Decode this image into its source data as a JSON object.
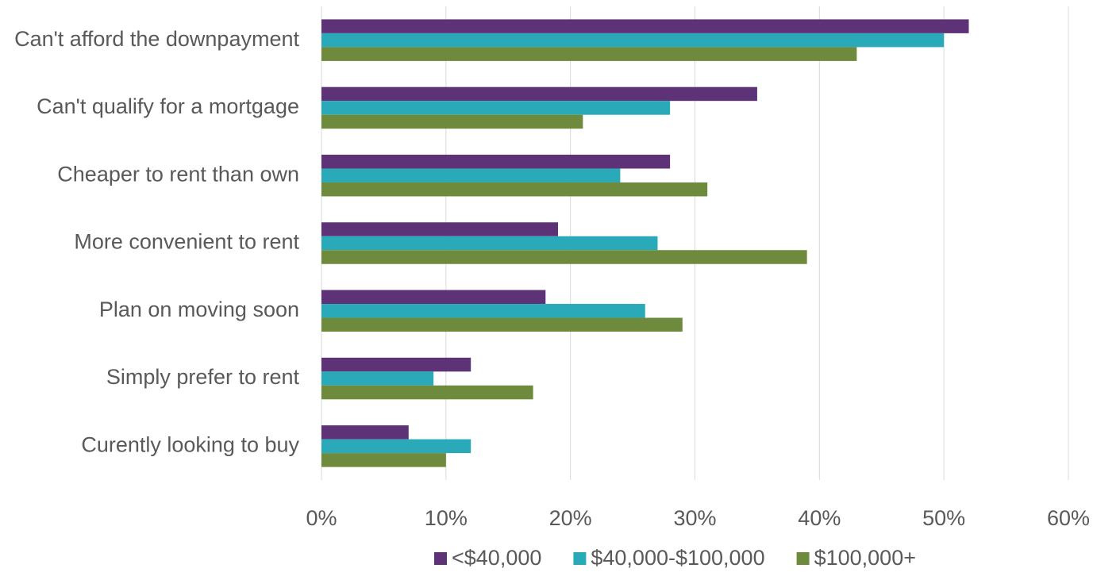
{
  "chart_data": {
    "type": "bar",
    "orientation": "horizontal",
    "categories": [
      "Can't afford the downpayment",
      "Can't qualify for a mortgage",
      "Cheaper to rent than own",
      "More convenient to rent",
      "Plan on moving soon",
      "Simply prefer to rent",
      "Curently looking to buy"
    ],
    "series": [
      {
        "name": "<$40,000",
        "color": "#5e3276",
        "values": [
          52,
          35,
          28,
          19,
          18,
          12,
          7
        ]
      },
      {
        "name": "$40,000-$100,000",
        "color": "#2aaab8",
        "values": [
          50,
          28,
          24,
          27,
          26,
          9,
          12
        ]
      },
      {
        "name": "$100,000+",
        "color": "#6e8b3d",
        "values": [
          43,
          21,
          31,
          39,
          29,
          17,
          10
        ]
      }
    ],
    "xlim": [
      0,
      60
    ],
    "xticks": [
      {
        "value": 0,
        "label": "0%"
      },
      {
        "value": 10,
        "label": "10%"
      },
      {
        "value": 20,
        "label": "20%"
      },
      {
        "value": 30,
        "label": "30%"
      },
      {
        "value": 40,
        "label": "40%"
      },
      {
        "value": 50,
        "label": "50%"
      },
      {
        "value": 60,
        "label": "60%"
      }
    ],
    "grid": true,
    "legend": "bottom"
  }
}
